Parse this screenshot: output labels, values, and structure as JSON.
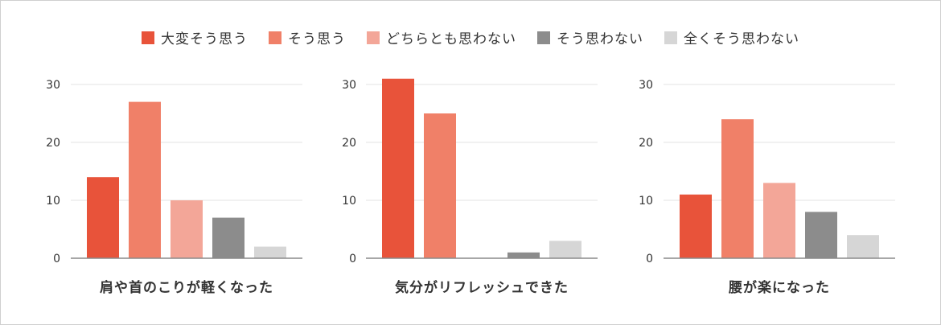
{
  "legend": [
    {
      "label": "大変そう思う",
      "color": "#e8533a"
    },
    {
      "label": "そう思う",
      "color": "#f08068"
    },
    {
      "label": "どちらとも思わない",
      "color": "#f3a698"
    },
    {
      "label": "そう思わない",
      "color": "#8c8c8c"
    },
    {
      "label": "全くそう思わない",
      "color": "#d6d6d6"
    }
  ],
  "chart_data": [
    {
      "type": "bar",
      "xlabel": "肩や首のこりが軽くなった",
      "categories": [
        "大変そう思う",
        "そう思う",
        "どちらとも思わない",
        "そう思わない",
        "全くそう思わない"
      ],
      "values": [
        14,
        27,
        10,
        7,
        2
      ],
      "ylim": [
        0,
        30
      ],
      "yticks": [
        0,
        10,
        20,
        30
      ],
      "grid": true
    },
    {
      "type": "bar",
      "xlabel": "気分がリフレッシュできた",
      "categories": [
        "大変そう思う",
        "そう思う",
        "どちらとも思わない",
        "そう思わない",
        "全くそう思わない"
      ],
      "values": [
        31,
        25,
        0,
        1,
        3
      ],
      "ylim": [
        0,
        30
      ],
      "yticks": [
        0,
        10,
        20,
        30
      ],
      "grid": true
    },
    {
      "type": "bar",
      "xlabel": "腰が楽になった",
      "categories": [
        "大変そう思う",
        "そう思う",
        "どちらとも思わない",
        "そう思わない",
        "全くそう思わない"
      ],
      "values": [
        11,
        24,
        13,
        8,
        4
      ],
      "ylim": [
        0,
        30
      ],
      "yticks": [
        0,
        10,
        20,
        30
      ],
      "grid": true
    }
  ]
}
